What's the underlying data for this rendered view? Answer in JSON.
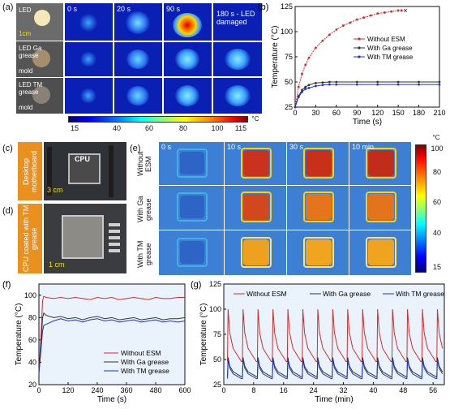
{
  "panel_a": {
    "letter": "(a)",
    "row_labels": [
      "LED",
      "LED Ga grease",
      "LED TM grease"
    ],
    "mold_labels": [
      "mold",
      "mold"
    ],
    "scale_bar": "1cm",
    "time_labels": [
      "0 s",
      "20 s",
      "90 s",
      "180 s - LED damaged"
    ],
    "colorbar": {
      "ticks": [
        "15",
        "40",
        "60",
        "80",
        "100",
        "115"
      ],
      "unit": "°C"
    }
  },
  "panel_c": {
    "letter": "(c)",
    "tag": "Desktop motherboard",
    "cpu_label": "CPU",
    "scale_bar": "3 cm"
  },
  "panel_d": {
    "letter": "(d)",
    "tag": "CPU coated with TM grease",
    "scale_bar": "1 cm"
  },
  "panel_e": {
    "letter": "(e)",
    "row_labels": [
      "Without ESM",
      "With Ga grease",
      "With TM grease"
    ],
    "time_labels": [
      "0 s",
      "10 s",
      "30 s",
      "10 min"
    ],
    "colorbar": {
      "ticks": [
        "100",
        "80",
        "60",
        "40",
        "15"
      ],
      "unit": "°C"
    }
  },
  "chart_data": [
    {
      "panel": "(b)",
      "type": "line",
      "xlabel": "Time (s)",
      "ylabel": "Temperature (°C)",
      "xlim": [
        0,
        210
      ],
      "ylim": [
        25,
        125
      ],
      "xticks": [
        0,
        30,
        60,
        90,
        120,
        150,
        180,
        210
      ],
      "yticks": [
        25,
        50,
        75,
        100,
        125
      ],
      "legend": "right",
      "end_marker": "×",
      "series": [
        {
          "name": "Without ESM",
          "color": "#e0252b",
          "x": [
            0,
            5,
            10,
            15,
            20,
            30,
            40,
            50,
            60,
            70,
            80,
            90,
            100,
            110,
            120,
            130,
            140,
            150,
            155
          ],
          "y": [
            25,
            45,
            58,
            67,
            74,
            84,
            91,
            97,
            102,
            106,
            109,
            112,
            114,
            116,
            118,
            119,
            120,
            121,
            121
          ]
        },
        {
          "name": "With Ga grease",
          "color": "#333333",
          "x": [
            0,
            5,
            10,
            15,
            20,
            30,
            40,
            50,
            60,
            90,
            120,
            150,
            180,
            210
          ],
          "y": [
            25,
            36,
            42,
            45,
            47,
            49,
            49.5,
            50,
            50,
            50,
            50,
            50,
            50,
            50
          ]
        },
        {
          "name": "With TM grease",
          "color": "#1f35c8",
          "x": [
            0,
            5,
            10,
            15,
            20,
            30,
            40,
            50,
            60,
            90,
            120,
            150,
            180,
            210
          ],
          "y": [
            25,
            35,
            40,
            43,
            44,
            46,
            47,
            47.5,
            47.5,
            47.5,
            47.5,
            47.5,
            47.5,
            47.5
          ]
        }
      ]
    },
    {
      "panel": "(f)",
      "type": "line",
      "xlabel": "Time (s)",
      "ylabel": "Temperature (°C)",
      "xlim": [
        0,
        600
      ],
      "ylim": [
        20,
        110
      ],
      "xticks": [
        0,
        120,
        240,
        360,
        480,
        600
      ],
      "yticks": [
        20,
        40,
        60,
        80,
        100
      ],
      "legend": "lower right",
      "series": [
        {
          "name": "Without ESM",
          "color": "#d62a2a",
          "x": [
            0,
            10,
            15,
            20,
            30,
            60,
            90,
            120,
            150,
            180,
            210,
            240,
            270,
            300,
            330,
            360,
            390,
            420,
            450,
            480,
            510,
            540,
            570,
            600
          ],
          "y": [
            30,
            70,
            95,
            99,
            98,
            97,
            98,
            97,
            98,
            97,
            96,
            98,
            97,
            98,
            96,
            97,
            98,
            97,
            96,
            98,
            97,
            97,
            98,
            98
          ]
        },
        {
          "name": "With Ga grease",
          "color": "#333333",
          "x": [
            0,
            10,
            15,
            20,
            30,
            60,
            90,
            120,
            150,
            180,
            210,
            240,
            270,
            300,
            330,
            360,
            390,
            420,
            450,
            480,
            510,
            540,
            570,
            600
          ],
          "y": [
            30,
            60,
            80,
            84,
            82,
            80,
            81,
            79,
            80,
            78,
            80,
            81,
            79,
            80,
            78,
            79,
            80,
            78,
            79,
            80,
            78,
            79,
            79,
            80
          ]
        },
        {
          "name": "With TM grease",
          "color": "#2233bb",
          "x": [
            0,
            10,
            15,
            20,
            30,
            60,
            90,
            120,
            150,
            180,
            210,
            240,
            270,
            300,
            330,
            360,
            390,
            420,
            450,
            480,
            510,
            540,
            570,
            600
          ],
          "y": [
            30,
            55,
            68,
            73,
            74,
            77,
            79,
            77,
            78,
            76,
            78,
            79,
            77,
            78,
            76,
            77,
            78,
            76,
            77,
            78,
            76,
            77,
            76,
            77
          ]
        }
      ]
    },
    {
      "panel": "(g)",
      "type": "line",
      "xlabel": "Time (min)",
      "ylabel": "Temperature (°C)",
      "xlim": [
        0,
        59
      ],
      "ylim": [
        25,
        125
      ],
      "xticks": [
        0,
        8,
        16,
        24,
        32,
        40,
        48,
        56
      ],
      "yticks": [
        25,
        50,
        75,
        100,
        125
      ],
      "legend": "top",
      "cycle_period_min": 4,
      "series": [
        {
          "name": "Without ESM",
          "color": "#d62a2a",
          "peak": 100,
          "trough": 48
        },
        {
          "name": "With Ga grease",
          "color": "#333333",
          "peak": 52,
          "trough": 33
        },
        {
          "name": "With TM grease",
          "color": "#2233bb",
          "peak": 50,
          "trough": 31
        }
      ]
    }
  ]
}
